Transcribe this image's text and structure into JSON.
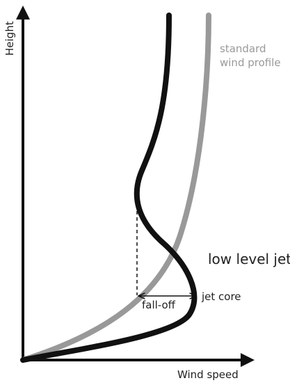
{
  "axes": {
    "y_label": "Height",
    "x_label": "Wind speed"
  },
  "labels": {
    "standard_profile": [
      "standard",
      "wind profile"
    ],
    "low_level_jet": "low level jet",
    "jet_core": "jet core",
    "fall_off": "fall-off"
  }
}
